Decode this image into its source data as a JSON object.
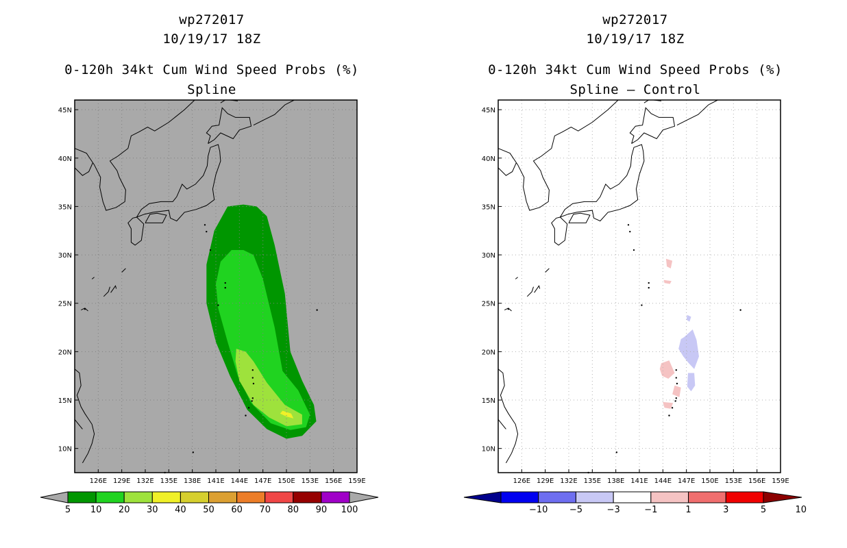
{
  "panels": [
    {
      "storm_id": "wp272017",
      "datetime": "10/19/17 18Z",
      "product": "0-120h 34kt Cum Wind Speed Probs (%)",
      "subtitle": "Spline",
      "map_background": "#a9a9a9"
    },
    {
      "storm_id": "wp272017",
      "datetime": "10/19/17 18Z",
      "product": "0-120h 34kt Cum Wind Speed Probs (%)",
      "subtitle": "Spline – Control",
      "map_background": "#ffffff"
    }
  ],
  "chart_data": [
    {
      "type": "heatmap",
      "title": "0-120h 34kt Cum Wind Speed Probs (%)",
      "subtitle": "Spline",
      "lon_range": [
        123,
        159
      ],
      "lat_range": [
        7.5,
        46
      ],
      "x_ticks": [
        "126E",
        "129E",
        "132E",
        "135E",
        "138E",
        "141E",
        "144E",
        "147E",
        "150E",
        "153E",
        "156E",
        "159E"
      ],
      "y_ticks": [
        "10N",
        "15N",
        "20N",
        "25N",
        "30N",
        "35N",
        "40N",
        "45N"
      ],
      "colorbar": {
        "labels": [
          "5",
          "10",
          "20",
          "30",
          "40",
          "50",
          "60",
          "70",
          "80",
          "90",
          "100"
        ],
        "colors": [
          "#009600",
          "#20d320",
          "#9ee23c",
          "#f0f028",
          "#d6cf2e",
          "#dca032",
          "#ec7d28",
          "#f04646",
          "#960000",
          "#a000c8"
        ]
      },
      "contours": [
        {
          "level": 5,
          "region": "outer envelope, ~139E-154E, 11N-35N"
        },
        {
          "level": 10,
          "region": "inner envelope, ~140E-153E, 12N-30.5N"
        },
        {
          "level": 20,
          "region": "~143.5E-152.5E, 12.5N-20.3N"
        },
        {
          "level": 30,
          "region": "small spot near 150E, 13.5N"
        }
      ]
    },
    {
      "type": "heatmap",
      "title": "0-120h 34kt Cum Wind Speed Probs (%)",
      "subtitle": "Spline – Control",
      "lon_range": [
        123,
        159
      ],
      "lat_range": [
        7.5,
        46
      ],
      "x_ticks": [
        "126E",
        "129E",
        "132E",
        "135E",
        "138E",
        "141E",
        "144E",
        "147E",
        "150E",
        "153E",
        "156E",
        "159E"
      ],
      "y_ticks": [
        "10N",
        "15N",
        "20N",
        "25N",
        "30N",
        "35N",
        "40N",
        "45N"
      ],
      "colorbar": {
        "labels": [
          "−10",
          "−5",
          "−3",
          "−1",
          "1",
          "3",
          "5",
          "10"
        ],
        "colors": [
          "#00008c",
          "#0000f0",
          "#6e6ef0",
          "#c8c8f5",
          "#ffffff",
          "#f5c3c3",
          "#f06e6e",
          "#f00000",
          "#8c0000"
        ]
      },
      "contours": [
        {
          "level": -3,
          "region": "~146.5E-148.5E, 15.5N-22N"
        },
        {
          "level": 3,
          "region": "~143.5E-146E, 14N-19N and near 145E, 29N"
        }
      ]
    }
  ]
}
